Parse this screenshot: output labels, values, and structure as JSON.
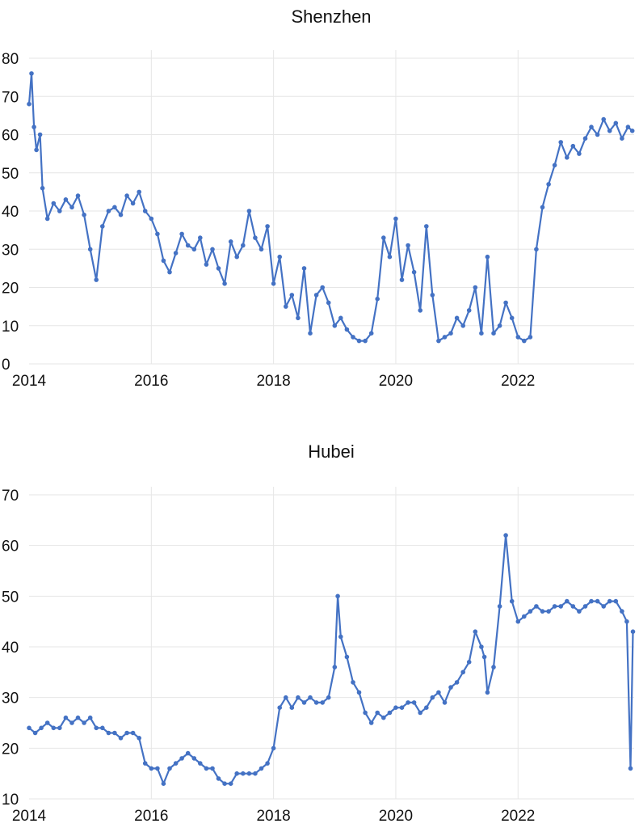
{
  "chart_data": [
    {
      "type": "line",
      "title": "Shenzhen",
      "xlabel": "",
      "ylabel": "",
      "ylim": [
        0,
        80
      ],
      "yticks": [
        0,
        10,
        20,
        30,
        40,
        50,
        60,
        70,
        80
      ],
      "xlim": [
        2014.0,
        2023.9
      ],
      "xticks": [
        2014,
        2016,
        2018,
        2020,
        2022
      ],
      "grid": true,
      "color": "#4472c4",
      "series": [
        {
          "x": [
            2014.0,
            2014.04,
            2014.08,
            2014.12,
            2014.18,
            2014.22,
            2014.3,
            2014.4,
            2014.5,
            2014.6,
            2014.7,
            2014.8,
            2014.9,
            2015.0,
            2015.1,
            2015.2,
            2015.3,
            2015.4,
            2015.5,
            2015.6,
            2015.7,
            2015.8,
            2015.9,
            2016.0,
            2016.1,
            2016.2,
            2016.3,
            2016.4,
            2016.5,
            2016.6,
            2016.7,
            2016.8,
            2016.9,
            2017.0,
            2017.1,
            2017.2,
            2017.3,
            2017.4,
            2017.5,
            2017.6,
            2017.7,
            2017.8,
            2017.9,
            2018.0,
            2018.1,
            2018.2,
            2018.3,
            2018.4,
            2018.5,
            2018.6,
            2018.7,
            2018.8,
            2018.9,
            2019.0,
            2019.1,
            2019.2,
            2019.3,
            2019.4,
            2019.5,
            2019.6,
            2019.7,
            2019.8,
            2019.9,
            2020.0,
            2020.1,
            2020.2,
            2020.3,
            2020.4,
            2020.5,
            2020.6,
            2020.7,
            2020.8,
            2020.9,
            2021.0,
            2021.1,
            2021.2,
            2021.3,
            2021.4,
            2021.5,
            2021.6,
            2021.7,
            2021.8,
            2021.9,
            2022.0,
            2022.1,
            2022.2,
            2022.3,
            2022.4,
            2022.5,
            2022.6,
            2022.7,
            2022.8,
            2022.9,
            2023.0,
            2023.1,
            2023.2,
            2023.3,
            2023.4,
            2023.5,
            2023.6,
            2023.7,
            2023.8,
            2023.87
          ],
          "y": [
            68,
            76,
            62,
            56,
            60,
            46,
            38,
            42,
            40,
            43,
            41,
            44,
            39,
            30,
            22,
            36,
            40,
            41,
            39,
            44,
            42,
            45,
            40,
            38,
            34,
            27,
            24,
            29,
            34,
            31,
            30,
            33,
            26,
            30,
            25,
            21,
            32,
            28,
            31,
            40,
            33,
            30,
            36,
            21,
            28,
            15,
            18,
            12,
            25,
            8,
            18,
            20,
            16,
            10,
            12,
            9,
            7,
            6,
            6,
            8,
            17,
            33,
            28,
            38,
            22,
            31,
            24,
            14,
            36,
            18,
            6,
            7,
            8,
            12,
            10,
            14,
            20,
            8,
            28,
            8,
            10,
            16,
            12,
            7,
            6,
            7,
            30,
            41,
            47,
            52,
            58,
            54,
            57,
            55,
            59,
            62,
            60,
            64,
            61,
            63,
            59,
            62,
            61
          ]
        }
      ]
    },
    {
      "type": "line",
      "title": "Hubei",
      "xlabel": "",
      "ylabel": "",
      "ylim": [
        10,
        70
      ],
      "yticks": [
        10,
        20,
        30,
        40,
        50,
        60,
        70
      ],
      "xlim": [
        2014.0,
        2023.9
      ],
      "xticks": [
        2014,
        2016,
        2018,
        2020,
        2022
      ],
      "grid": true,
      "color": "#4472c4",
      "series": [
        {
          "x": [
            2014.0,
            2014.1,
            2014.2,
            2014.3,
            2014.4,
            2014.5,
            2014.6,
            2014.7,
            2014.8,
            2014.9,
            2015.0,
            2015.1,
            2015.2,
            2015.3,
            2015.4,
            2015.5,
            2015.6,
            2015.7,
            2015.8,
            2015.9,
            2016.0,
            2016.1,
            2016.2,
            2016.3,
            2016.4,
            2016.5,
            2016.6,
            2016.7,
            2016.8,
            2016.9,
            2017.0,
            2017.1,
            2017.2,
            2017.3,
            2017.4,
            2017.5,
            2017.6,
            2017.7,
            2017.8,
            2017.9,
            2018.0,
            2018.1,
            2018.2,
            2018.3,
            2018.4,
            2018.5,
            2018.6,
            2018.7,
            2018.8,
            2018.9,
            2019.0,
            2019.05,
            2019.1,
            2019.2,
            2019.3,
            2019.4,
            2019.5,
            2019.6,
            2019.7,
            2019.8,
            2019.9,
            2020.0,
            2020.1,
            2020.2,
            2020.3,
            2020.4,
            2020.5,
            2020.6,
            2020.7,
            2020.8,
            2020.9,
            2021.0,
            2021.1,
            2021.2,
            2021.3,
            2021.4,
            2021.45,
            2021.5,
            2021.6,
            2021.7,
            2021.8,
            2021.9,
            2022.0,
            2022.1,
            2022.2,
            2022.3,
            2022.4,
            2022.5,
            2022.6,
            2022.7,
            2022.8,
            2022.9,
            2023.0,
            2023.1,
            2023.2,
            2023.3,
            2023.4,
            2023.5,
            2023.6,
            2023.7,
            2023.78,
            2023.84,
            2023.88
          ],
          "y": [
            24,
            23,
            24,
            25,
            24,
            24,
            26,
            25,
            26,
            25,
            26,
            24,
            24,
            23,
            23,
            22,
            23,
            23,
            22,
            17,
            16,
            16,
            13,
            16,
            17,
            18,
            19,
            18,
            17,
            16,
            16,
            14,
            13,
            13,
            15,
            15,
            15,
            15,
            16,
            17,
            20,
            28,
            30,
            28,
            30,
            29,
            30,
            29,
            29,
            30,
            36,
            50,
            42,
            38,
            33,
            31,
            27,
            25,
            27,
            26,
            27,
            28,
            28,
            29,
            29,
            27,
            28,
            30,
            31,
            29,
            32,
            33,
            35,
            37,
            43,
            40,
            38,
            31,
            36,
            48,
            62,
            49,
            45,
            46,
            47,
            48,
            47,
            47,
            48,
            48,
            49,
            48,
            47,
            48,
            49,
            49,
            48,
            49,
            49,
            47,
            45,
            16,
            43
          ]
        }
      ]
    }
  ]
}
